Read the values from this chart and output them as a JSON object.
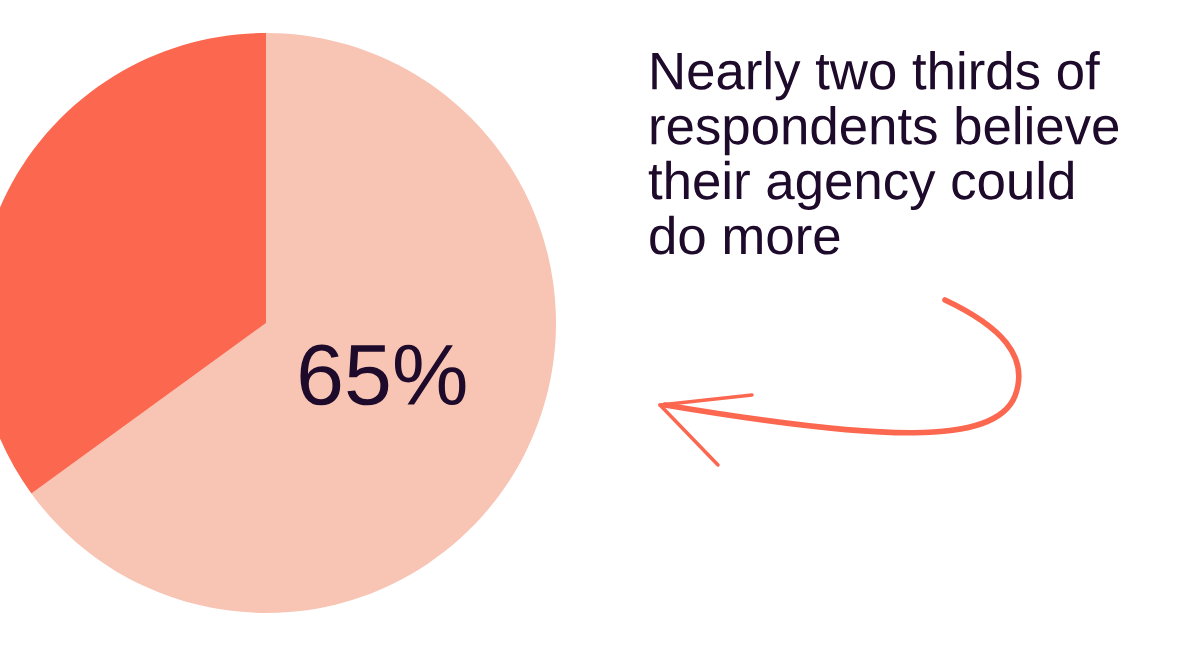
{
  "chart_data": {
    "type": "pie",
    "categories": [
      null,
      null
    ],
    "values": [
      65,
      35
    ],
    "colors": [
      "#f8c4b4",
      "#fc674f"
    ],
    "value_labels": [
      "65%",
      null
    ],
    "annotations": [
      "Nearly two thirds of\nrespondents believe\ntheir agency could\ndo more"
    ]
  }
}
